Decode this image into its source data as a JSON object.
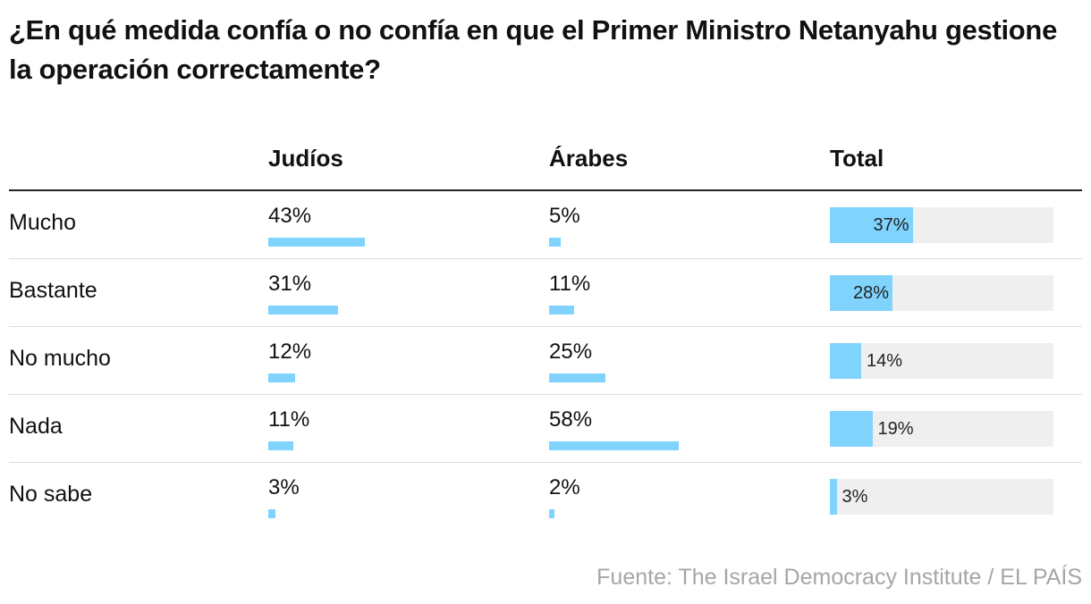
{
  "title": "¿En qué medida confía o no confía en que el Primer Ministro Netanyahu gestione la operación correctamente?",
  "source": "Fuente: The Israel Democracy Institute / EL PAÍS",
  "colors": {
    "bar": "#7fd3fd",
    "track": "#efefef"
  },
  "chart_data": {
    "type": "table",
    "columns": [
      "Judíos",
      "Árabes",
      "Total"
    ],
    "unit": "%",
    "rows": [
      {
        "label": "Mucho",
        "judios": 43,
        "arabes": 5,
        "total": 37
      },
      {
        "label": "Bastante",
        "judios": 31,
        "arabes": 11,
        "total": 28
      },
      {
        "label": "No mucho",
        "judios": 12,
        "arabes": 25,
        "total": 14
      },
      {
        "label": "Nada",
        "judios": 11,
        "arabes": 58,
        "total": 19
      },
      {
        "label": "No sabe",
        "judios": 3,
        "arabes": 2,
        "total": 3
      }
    ]
  }
}
